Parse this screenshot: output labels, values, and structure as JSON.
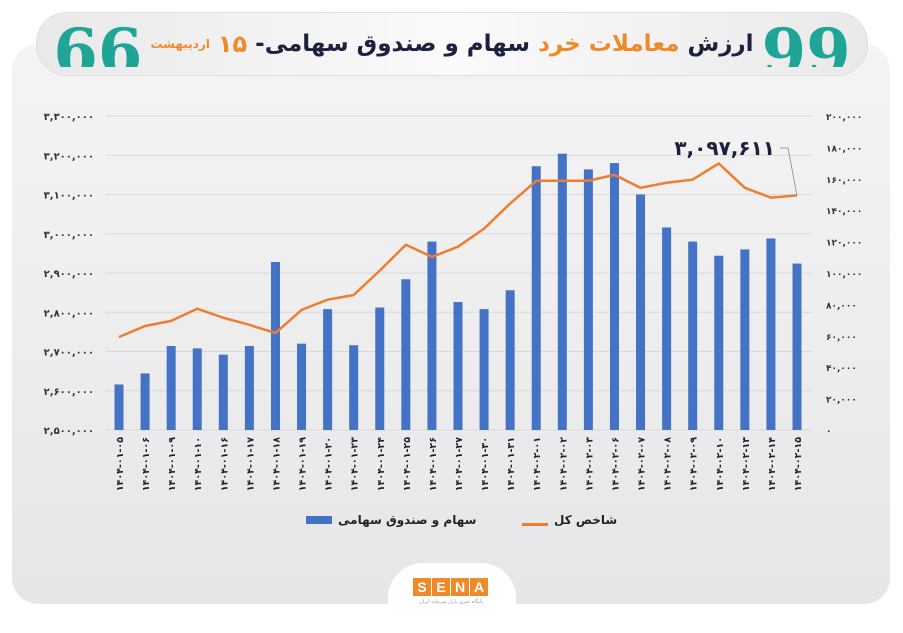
{
  "header": {
    "title_part1": "ارزش",
    "title_highlight": "معاملات خرد",
    "title_part2": "سهام و صندوق سهامی-",
    "day": "۱۵",
    "month": "اردیبهشت",
    "quote_open": "99",
    "quote_close": "66"
  },
  "logo": {
    "letters": [
      "S",
      "E",
      "N",
      "A"
    ],
    "subtitle": "پایگاه خبری بازار سرمایه ایران"
  },
  "colors": {
    "bars": "#4472c4",
    "line": "#ed7d31",
    "accent": "#ef8a2a",
    "quote": "#1ea596"
  },
  "chart_data": {
    "type": "bar+line",
    "categories": [
      "۱۴۰۴-۰۱-۰۵",
      "۱۴۰۴-۰۱-۰۶",
      "۱۴۰۴-۰۱-۰۹",
      "۱۴۰۴-۰۱-۱۰",
      "۱۴۰۴-۰۱-۱۶",
      "۱۴۰۴-۰۱-۱۷",
      "۱۴۰۴-۰۱-۱۸",
      "۱۴۰۴-۰۱-۱۹",
      "۱۴۰۴-۰۱-۲۰",
      "۱۴۰۴-۰۱-۲۳",
      "۱۴۰۴-۰۱-۲۴",
      "۱۴۰۴-۰۱-۲۵",
      "۱۴۰۴-۰۱-۲۶",
      "۱۴۰۴-۰۱-۲۷",
      "۱۴۰۴-۰۱-۳۰",
      "۱۴۰۴-۰۱-۳۱",
      "۱۴۰۴-۰۲-۰۱",
      "۱۴۰۴-۰۲-۰۲",
      "۱۴۰۴-۰۲-۰۳",
      "۱۴۰۴-۰۲-۰۶",
      "۱۴۰۴-۰۲-۰۷",
      "۱۴۰۴-۰۲-۰۸",
      "۱۴۰۴-۰۲-۰۹",
      "۱۴۰۴-۰۲-۱۰",
      "۱۴۰۴-۰۲-۱۳",
      "۱۴۰۴-۰۲-۱۴",
      "۱۴۰۴-۰۲-۱۵"
    ],
    "series": [
      {
        "name": "سهام و صندوق سهامی",
        "type": "bar",
        "axis": "right",
        "values": [
          29000,
          36000,
          53500,
          52000,
          48000,
          53500,
          107000,
          55000,
          77000,
          54000,
          78000,
          96000,
          120000,
          81500,
          77000,
          89000,
          168000,
          176000,
          166000,
          170000,
          150000,
          129000,
          120000,
          111000,
          115000,
          122000,
          106000
        ]
      },
      {
        "name": "شاخص کل",
        "type": "line",
        "axis": "left",
        "values": [
          2737000,
          2765000,
          2778000,
          2809000,
          2786000,
          2768000,
          2747000,
          2806000,
          2832000,
          2844000,
          2906000,
          2972000,
          2941000,
          2967000,
          3013000,
          3077000,
          3135000,
          3135000,
          3135000,
          3150000,
          3117000,
          3130000,
          3138000,
          3179000,
          3117000,
          3092000,
          3097611
        ]
      }
    ],
    "left_axis": {
      "ylim": [
        2500000,
        3300000
      ],
      "ticks": [
        "۲,۵۰۰,۰۰۰",
        "۲,۶۰۰,۰۰۰",
        "۲,۷۰۰,۰۰۰",
        "۲,۸۰۰,۰۰۰",
        "۲,۹۰۰,۰۰۰",
        "۳,۰۰۰,۰۰۰",
        "۳,۱۰۰,۰۰۰",
        "۳,۲۰۰,۰۰۰",
        "۳,۳۰۰,۰۰۰"
      ]
    },
    "right_axis": {
      "ylim": [
        0,
        200000
      ],
      "ticks": [
        "۰",
        "۲۰,۰۰۰",
        "۴۰,۰۰۰",
        "۶۰,۰۰۰",
        "۸۰,۰۰۰",
        "۱۰۰,۰۰۰",
        "۱۲۰,۰۰۰",
        "۱۴۰,۰۰۰",
        "۱۶۰,۰۰۰",
        "۱۸۰,۰۰۰",
        "۲۰۰,۰۰۰"
      ]
    },
    "annotation": "۳,۰۹۷,۶۱۱",
    "grid": true,
    "legend_position": "bottom"
  }
}
